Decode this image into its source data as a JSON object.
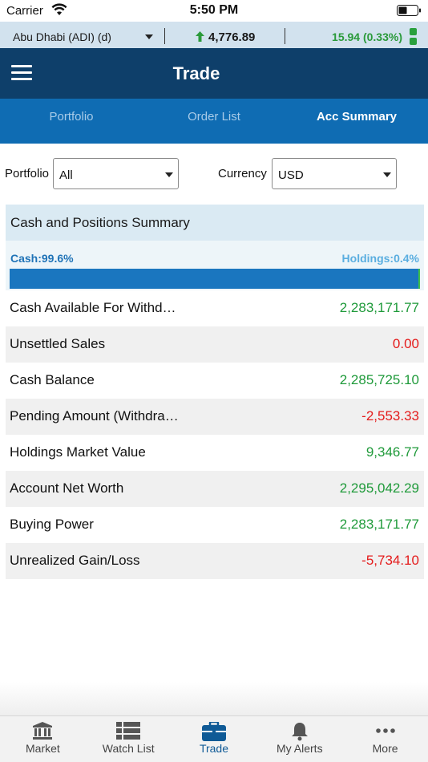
{
  "status": {
    "carrier": "Carrier",
    "time": "5:50 PM"
  },
  "ticker": {
    "exchange": "Abu Dhabi (ADI) (d)",
    "index_value": "4,776.89",
    "change": "15.94 (0.33%)"
  },
  "header": {
    "title": "Trade"
  },
  "tabs": [
    {
      "label": "Portfolio",
      "active": false
    },
    {
      "label": "Order List",
      "active": false
    },
    {
      "label": "Acc Summary",
      "active": true
    }
  ],
  "filters": {
    "portfolio_label": "Portfolio",
    "portfolio_value": "All",
    "currency_label": "Currency",
    "currency_value": "USD"
  },
  "summary": {
    "title": "Cash and Positions Summary",
    "cash_label": "Cash:99.6%",
    "holdings_label": "Holdings:0.4%",
    "cash_fraction": 0.996,
    "rows": [
      {
        "label": "Cash Available For Withd…",
        "value": "2,283,171.77",
        "sign": "pos"
      },
      {
        "label": "Unsettled Sales",
        "value": "0.00",
        "sign": "neg"
      },
      {
        "label": "Cash Balance",
        "value": "2,285,725.10",
        "sign": "pos"
      },
      {
        "label": "Pending Amount (Withdra…",
        "value": "-2,553.33",
        "sign": "neg"
      },
      {
        "label": "Holdings Market Value",
        "value": "9,346.77",
        "sign": "pos"
      },
      {
        "label": "Account Net Worth",
        "value": "2,295,042.29",
        "sign": "pos"
      },
      {
        "label": "Buying Power",
        "value": "2,283,171.77",
        "sign": "pos"
      },
      {
        "label": "Unrealized Gain/Loss",
        "value": "-5,734.10",
        "sign": "neg"
      }
    ]
  },
  "tabbar": [
    {
      "label": "Market",
      "icon": "bank-icon"
    },
    {
      "label": "Watch List",
      "icon": "list-icon"
    },
    {
      "label": "Trade",
      "icon": "briefcase-icon",
      "active": true
    },
    {
      "label": "My Alerts",
      "icon": "bell-icon"
    },
    {
      "label": "More",
      "icon": "more-dots-icon"
    }
  ],
  "colors": {
    "header": "#0e3f6a",
    "tabs": "#0f6cb3",
    "positive": "#1f9a3a",
    "negative": "#e41b1b",
    "cash_bar": "#1a76bf",
    "holdings_bar": "#3ec04a"
  }
}
